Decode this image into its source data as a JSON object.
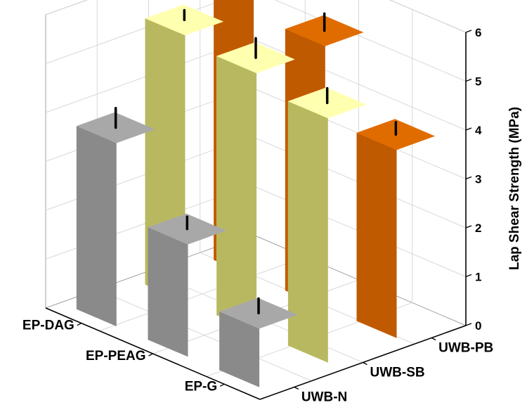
{
  "chart_data": {
    "type": "bar",
    "title": "",
    "zlabel": "Lap Shear Strength (MPa)",
    "zlim": [
      0,
      6
    ],
    "z_ticks": [
      0,
      1,
      2,
      3,
      4,
      5,
      6
    ],
    "x_categories": [
      "EP-DAG",
      "EP-PEAG",
      "EP-G"
    ],
    "y_categories": [
      "UWB-N",
      "UWB-SB",
      "UWB-PB"
    ],
    "grid": true,
    "series": [
      {
        "y_category": "UWB-PB",
        "color_front": "#ff8000",
        "color_side": "#c05a00",
        "color_top": "#e06c00",
        "values": [
          5.85,
          5.35,
          3.85
        ],
        "errors": [
          0.25,
          0.35,
          0.25
        ]
      },
      {
        "y_category": "UWB-SB",
        "color_front": "#ffff99",
        "color_side": "#b8b860",
        "color_top": "#ffffb0",
        "values": [
          5.45,
          5.3,
          5.0
        ],
        "errors": [
          0.2,
          0.4,
          0.3
        ]
      },
      {
        "y_category": "UWB-N",
        "color_front": "#c8c8c8",
        "color_side": "#8a8a8a",
        "color_top": "#a8a8a8",
        "values": [
          3.75,
          2.3,
          1.2
        ],
        "errors": [
          0.4,
          0.25,
          0.3
        ]
      }
    ]
  }
}
